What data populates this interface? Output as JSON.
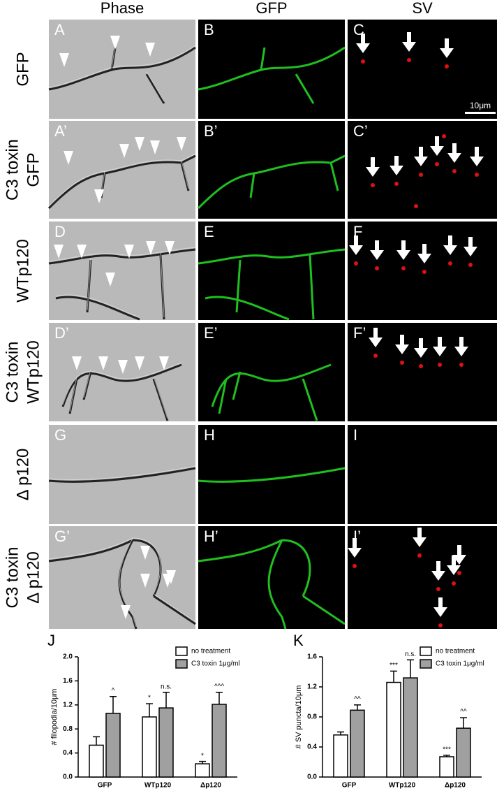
{
  "figure": {
    "columns": [
      "Phase",
      "GFP",
      "SV"
    ],
    "rows": [
      {
        "label": [
          "GFP"
        ],
        "panels": [
          "A",
          "B",
          "C"
        ]
      },
      {
        "label": [
          "C3 toxin",
          "GFP"
        ],
        "panels": [
          "A’",
          "B’",
          "C’"
        ]
      },
      {
        "label": [
          "WTp120"
        ],
        "panels": [
          "D",
          "E",
          "F"
        ]
      },
      {
        "label": [
          "C3 toxin",
          "WTp120"
        ],
        "panels": [
          "D’",
          "E’",
          "F’"
        ]
      },
      {
        "label": [
          "Δ p120"
        ],
        "panels": [
          "G",
          "H",
          "I"
        ]
      },
      {
        "label": [
          "C3 toxin",
          "Δ p120"
        ],
        "panels": [
          "G’",
          "H’",
          "I’"
        ]
      }
    ],
    "scale_bar": "10μm"
  },
  "chart_data": [
    {
      "type": "bar",
      "title": "J",
      "y_label": "# filopodia/10μm",
      "categories": [
        "GFP",
        "WTp120",
        "Δp120"
      ],
      "series": [
        {
          "name": "no treatment",
          "color": "#ffffff",
          "values": [
            0.53,
            1.0,
            0.22
          ],
          "errors": [
            0.14,
            0.22,
            0.04
          ],
          "significance": [
            null,
            "*",
            "*"
          ]
        },
        {
          "name": "C3 toxin 1μg/ml",
          "color": "#a0a0a0",
          "values": [
            1.06,
            1.15,
            1.21
          ],
          "errors": [
            0.28,
            0.26,
            0.2
          ],
          "significance": [
            "^",
            "n.s.",
            "^^^"
          ]
        }
      ],
      "ylim": [
        0,
        2
      ],
      "yticks": [
        {
          "value": 0,
          "label": "0.0"
        },
        0.4,
        0.8,
        1.2,
        1.6,
        {
          "value": 2,
          "label": "2.0"
        }
      ],
      "legend": "upper right"
    },
    {
      "type": "bar",
      "title": "K",
      "y_label": "# SV puncta/10μm",
      "categories": [
        "GFP",
        "WTp120",
        "Δp120"
      ],
      "series": [
        {
          "name": "no treatment",
          "color": "#ffffff",
          "values": [
            0.56,
            1.26,
            0.27
          ],
          "errors": [
            0.04,
            0.15,
            0.02
          ],
          "significance": [
            null,
            "***",
            "***"
          ]
        },
        {
          "name": "C3 toxin 1μg/ml",
          "color": "#a0a0a0",
          "values": [
            0.89,
            1.32,
            0.65
          ],
          "errors": [
            0.07,
            0.24,
            0.14
          ],
          "significance": [
            "^^",
            "n.s.",
            "^^"
          ]
        }
      ],
      "ylim": [
        0,
        1.6
      ],
      "yticks": [
        {
          "value": 0,
          "label": "0.0"
        },
        0.4,
        0.8,
        1.2,
        1.6
      ],
      "legend": "upper right"
    }
  ]
}
